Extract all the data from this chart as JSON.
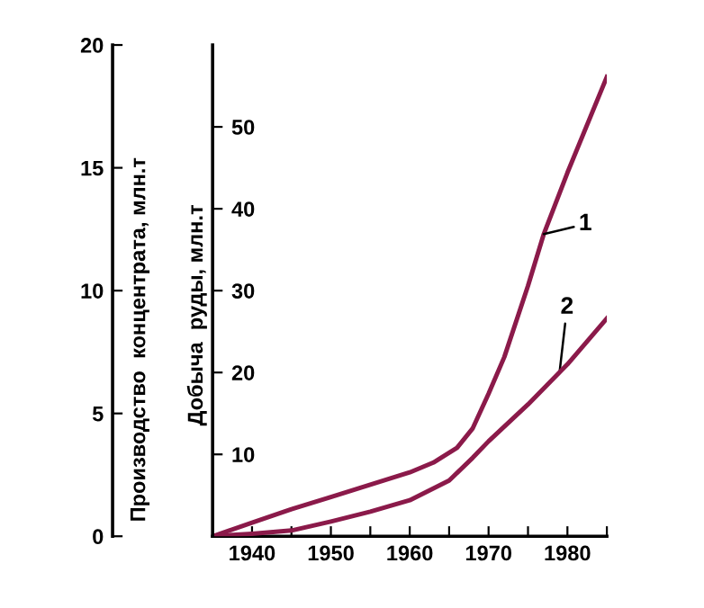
{
  "chart_data": {
    "type": "line",
    "xlabel": null,
    "ylabel": "Производство  концентрата, млн.т",
    "y2label": "Добыча  руды, млн.т",
    "series": [
      {
        "color": "#8b1a4a",
        "x": [
          1935,
          1940,
          1945,
          1950,
          1955,
          1960,
          1963,
          1966,
          1968,
          1970,
          1972,
          1975,
          1977,
          1980,
          1985
        ],
        "values": [
          0,
          0.55,
          1.1,
          1.6,
          2.1,
          2.6,
          3.0,
          3.6,
          4.4,
          5.8,
          7.3,
          10.2,
          12.3,
          14.8,
          18.7
        ]
      },
      {
        "color": "#8b1a4a",
        "axis": "y2",
        "x": [
          1935,
          1940,
          1945,
          1950,
          1955,
          1960,
          1965,
          1968,
          1970,
          1975,
          1980,
          1985
        ],
        "values": [
          0,
          0.3,
          0.7,
          1.8,
          3.0,
          4.4,
          6.8,
          9.6,
          11.6,
          16.1,
          21.0,
          26.6
        ]
      }
    ],
    "annotations": [
      {
        "text": "1",
        "x": 1977,
        "y": 12.3
      },
      {
        "text": "2",
        "x": 1979,
        "y": 6.67
      }
    ],
    "xlim": [
      1935,
      1985
    ],
    "xticks": [
      1940,
      1950,
      1960,
      1970,
      1980,
      {
        "value": 1945,
        "label": null
      },
      {
        "value": 1955,
        "label": null
      },
      {
        "value": 1965,
        "label": null
      },
      {
        "value": 1975,
        "label": null
      },
      {
        "value": 1985,
        "label": null
      }
    ],
    "ylim": [
      0,
      20
    ],
    "yticks": [
      0,
      5,
      10,
      15,
      20
    ],
    "y2lim": [
      0,
      60
    ],
    "y2ticks": [
      10,
      20,
      30,
      40,
      50
    ],
    "grid": false,
    "legend": false,
    "marker": "none",
    "line_style": "solid"
  }
}
